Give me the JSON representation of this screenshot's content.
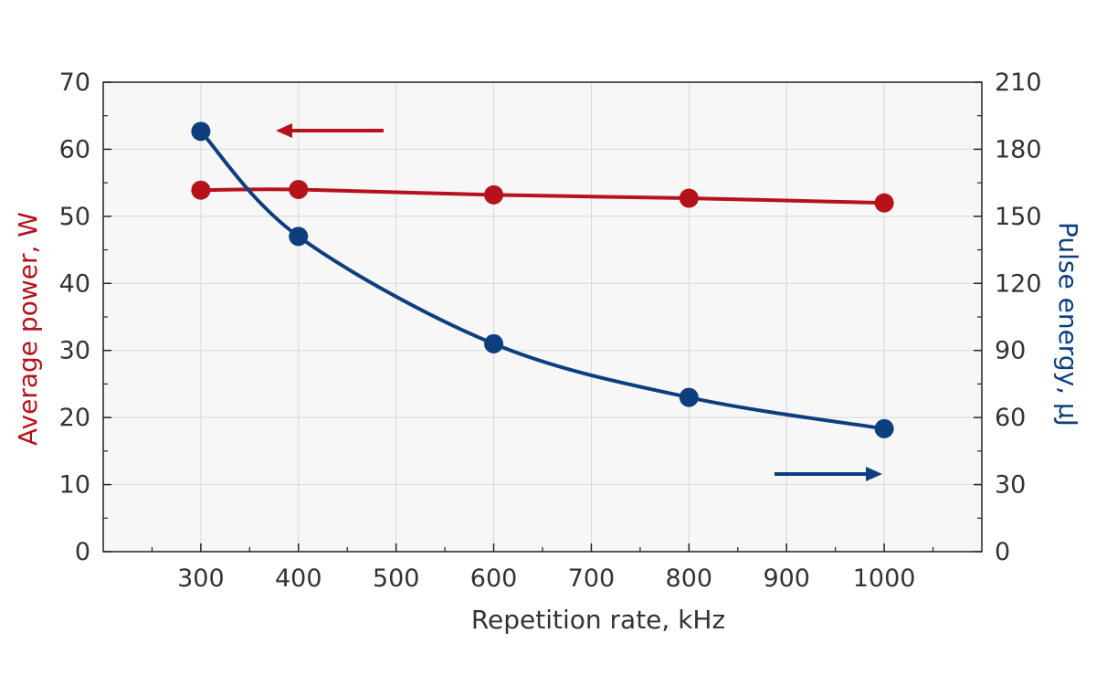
{
  "chart_data": {
    "type": "line",
    "xlabel": "Repetition rate, kHz",
    "ylabel_left": "Average power, W",
    "ylabel_right": "Pulse energy, μJ",
    "xlim": [
      200,
      1100
    ],
    "x_ticks": [
      300,
      400,
      500,
      600,
      700,
      800,
      900,
      1000
    ],
    "x_tick_labels": [
      "300",
      "400",
      "500",
      "600",
      "700",
      "800",
      "900",
      "1000"
    ],
    "ylim_left": [
      0,
      70
    ],
    "y_ticks_left": [
      0,
      10,
      20,
      30,
      40,
      50,
      60,
      70
    ],
    "y_tick_labels_left": [
      "0",
      "10",
      "20",
      "30",
      "40",
      "50",
      "60",
      "70"
    ],
    "ylim_right": [
      0,
      210
    ],
    "y_ticks_right": [
      0,
      30,
      60,
      90,
      120,
      150,
      180,
      210
    ],
    "y_tick_labels_right": [
      "0",
      "30",
      "60",
      "90",
      "120",
      "150",
      "180",
      "210"
    ],
    "grid": true,
    "series": [
      {
        "axis": "left",
        "color": "#b5121b",
        "x": [
          300,
          400,
          600,
          800,
          1000
        ],
        "values": [
          53.9,
          54.0,
          53.2,
          52.7,
          52.0
        ]
      },
      {
        "axis": "right",
        "color": "#0d3f7f",
        "x": [
          300,
          400,
          600,
          800,
          1000
        ],
        "values": [
          188,
          141,
          93,
          69,
          55
        ]
      }
    ],
    "annotations": [
      {
        "type": "arrow",
        "direction": "left",
        "meaning": "series on left axis",
        "color": "#b5121b"
      },
      {
        "type": "arrow",
        "direction": "right",
        "meaning": "series on right axis",
        "color": "#0d3f7f"
      }
    ]
  }
}
